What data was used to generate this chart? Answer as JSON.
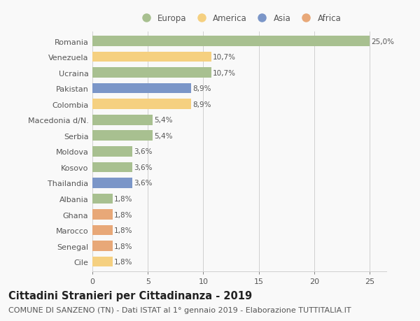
{
  "countries": [
    "Romania",
    "Venezuela",
    "Ucraina",
    "Pakistan",
    "Colombia",
    "Macedonia d/N.",
    "Serbia",
    "Moldova",
    "Kosovo",
    "Thailandia",
    "Albania",
    "Ghana",
    "Marocco",
    "Senegal",
    "Cile"
  ],
  "values": [
    25.0,
    10.7,
    10.7,
    8.9,
    8.9,
    5.4,
    5.4,
    3.6,
    3.6,
    3.6,
    1.8,
    1.8,
    1.8,
    1.8,
    1.8
  ],
  "labels": [
    "25,0%",
    "10,7%",
    "10,7%",
    "8,9%",
    "8,9%",
    "5,4%",
    "5,4%",
    "3,6%",
    "3,6%",
    "3,6%",
    "1,8%",
    "1,8%",
    "1,8%",
    "1,8%",
    "1,8%"
  ],
  "continents": [
    "Europa",
    "America",
    "Europa",
    "Asia",
    "America",
    "Europa",
    "Europa",
    "Europa",
    "Europa",
    "Asia",
    "Europa",
    "Africa",
    "Africa",
    "Africa",
    "America"
  ],
  "continent_colors": {
    "Europa": "#a8c090",
    "America": "#f5d080",
    "Asia": "#7b96c8",
    "Africa": "#e8a878"
  },
  "legend_order": [
    "Europa",
    "America",
    "Asia",
    "Africa"
  ],
  "title": "Cittadini Stranieri per Cittadinanza - 2019",
  "subtitle": "COMUNE DI SANZENO (TN) - Dati ISTAT al 1° gennaio 2019 - Elaborazione TUTTITALIA.IT",
  "xlim": [
    0,
    26.5
  ],
  "xticks": [
    0,
    5,
    10,
    15,
    20,
    25
  ],
  "background_color": "#f9f9f9",
  "grid_color": "#d0d0d0",
  "bar_height": 0.65,
  "title_fontsize": 10.5,
  "subtitle_fontsize": 8,
  "label_fontsize": 7.5,
  "tick_fontsize": 8,
  "legend_fontsize": 8.5
}
